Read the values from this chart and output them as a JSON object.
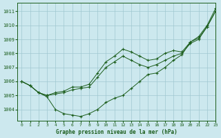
{
  "xlabel": "Graphe pression niveau de la mer (hPa)",
  "xlim": [
    -0.5,
    23
  ],
  "ylim": [
    1003.2,
    1011.6
  ],
  "yticks": [
    1004,
    1005,
    1006,
    1007,
    1008,
    1009,
    1010,
    1011
  ],
  "xticks": [
    0,
    1,
    2,
    3,
    4,
    5,
    6,
    7,
    8,
    9,
    10,
    11,
    12,
    13,
    14,
    15,
    16,
    17,
    18,
    19,
    20,
    21,
    22,
    23
  ],
  "bg_color": "#cce8ee",
  "grid_color": "#a0c8d0",
  "line_color": "#1a5c1a",
  "series": [
    [
      1006.0,
      1005.7,
      1005.2,
      1004.9,
      1004.0,
      1003.7,
      1003.6,
      1003.5,
      1003.7,
      1004.0,
      1004.5,
      1004.8,
      1005.0,
      1005.5,
      1006.0,
      1006.5,
      1006.6,
      1007.0,
      1007.5,
      1007.9,
      1008.8,
      1009.2,
      1010.0,
      1011.2
    ],
    [
      1006.0,
      1005.7,
      1005.2,
      1005.0,
      1005.1,
      1005.2,
      1005.4,
      1005.5,
      1005.6,
      1006.3,
      1007.0,
      1007.4,
      1007.8,
      1007.5,
      1007.2,
      1007.0,
      1007.2,
      1007.5,
      1007.8,
      1008.0,
      1008.7,
      1009.0,
      1009.9,
      1011.0
    ],
    [
      1006.0,
      1005.7,
      1005.2,
      1005.0,
      1005.2,
      1005.3,
      1005.6,
      1005.6,
      1005.8,
      1006.6,
      1007.4,
      1007.8,
      1008.3,
      1008.1,
      1007.8,
      1007.5,
      1007.6,
      1008.0,
      1008.2,
      1008.1,
      1008.8,
      1009.1,
      1009.9,
      1011.0
    ]
  ],
  "marker": "+"
}
